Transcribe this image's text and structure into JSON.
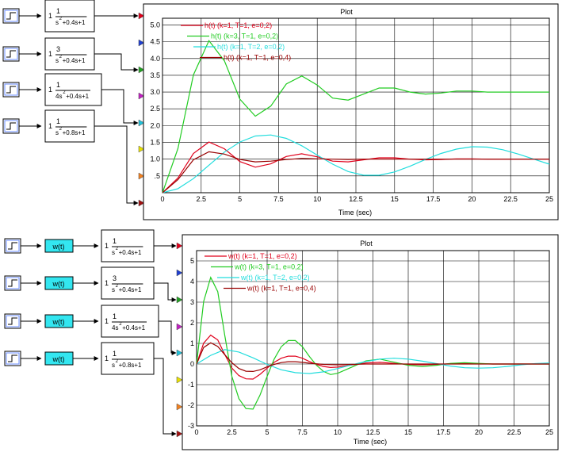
{
  "top_diagram": {
    "blocks": [
      {
        "gain": "1",
        "num": "1",
        "den_a": "s",
        "den_b": "+0.4s+1"
      },
      {
        "gain": "1",
        "num": "3",
        "den_a": "s",
        "den_b": "+0.4s+1"
      },
      {
        "gain": "1",
        "num": "1",
        "den_a": "4s",
        "den_b": "+0.4s+1"
      },
      {
        "gain": "1",
        "num": "1",
        "den_a": "s",
        "den_b": "+0.8s+1"
      }
    ]
  },
  "bottom_diagram": {
    "weight_label": "w(t)",
    "blocks": [
      {
        "gain": "1",
        "num": "1",
        "den_a": "s",
        "den_b": "+0.4s+1"
      },
      {
        "gain": "1",
        "num": "3",
        "den_a": "s",
        "den_b": "+0.4s+1"
      },
      {
        "gain": "1",
        "num": "1",
        "den_a": "4s",
        "den_b": "+0.4s+1"
      },
      {
        "gain": "1",
        "num": "1",
        "den_a": "s",
        "den_b": "+0.8s+1"
      }
    ]
  },
  "port_colors": [
    "#e0001b",
    "#1f3fd0",
    "#22a022",
    "#c020c0",
    "#20c0d8",
    "#e8e000",
    "#f08020",
    "#a01010"
  ],
  "chart_data": [
    {
      "type": "line",
      "title": "Plot",
      "xlabel": "Time (sec)",
      "ylabel": "",
      "xlim": [
        0,
        25
      ],
      "ylim": [
        0,
        5.2
      ],
      "grid": true,
      "xticks": [
        "0",
        "2.5",
        "5",
        "7.5",
        "10",
        "12.5",
        "15",
        "17.5",
        "20",
        "22.5",
        "25"
      ],
      "yticks": [
        ".5",
        "1.0",
        "1.5",
        "2.0",
        "2.5",
        "3.0",
        "3.5",
        "4.0",
        "4.5",
        "5.0"
      ],
      "legend_position": "top-left",
      "series": [
        {
          "name": "h(t) (k=1, T=1, e=0,2)",
          "color": "#e0001b",
          "x": [
            0,
            1,
            2,
            3,
            4,
            5,
            6,
            7,
            8,
            9,
            10,
            11,
            12,
            13,
            14,
            15,
            16,
            17,
            18,
            19,
            20,
            21,
            22,
            23,
            24,
            25
          ],
          "y": [
            0,
            0.44,
            1.17,
            1.51,
            1.31,
            0.93,
            0.76,
            0.86,
            1.08,
            1.16,
            1.07,
            0.94,
            0.92,
            0.98,
            1.04,
            1.04,
            1.0,
            0.98,
            0.99,
            1.01,
            1.01,
            1.0,
            1.0,
            1.0,
            1.0,
            1.0
          ]
        },
        {
          "name": "h(t) (k=3, T=1, e=0,2)",
          "color": "#22cc22",
          "x": [
            0,
            1,
            2,
            3,
            4,
            5,
            6,
            7,
            8,
            9,
            10,
            11,
            12,
            13,
            14,
            15,
            16,
            17,
            18,
            19,
            20,
            21,
            22,
            23,
            24,
            25
          ],
          "y": [
            0,
            1.32,
            3.51,
            4.53,
            3.93,
            2.79,
            2.28,
            2.58,
            3.24,
            3.48,
            3.21,
            2.82,
            2.76,
            2.94,
            3.12,
            3.12,
            3.0,
            2.94,
            2.97,
            3.03,
            3.03,
            3.0,
            3.0,
            3.0,
            3.0,
            3.0
          ]
        },
        {
          "name": "h(t) (k=1, T=2, e=0,2)",
          "color": "#22dddd",
          "x": [
            0,
            1,
            2,
            3,
            4,
            5,
            6,
            7,
            8,
            9,
            10,
            11,
            12,
            13,
            14,
            15,
            16,
            17,
            18,
            19,
            20,
            21,
            22,
            23,
            24,
            25
          ],
          "y": [
            0,
            0.12,
            0.42,
            0.82,
            1.21,
            1.51,
            1.69,
            1.72,
            1.62,
            1.4,
            1.12,
            0.85,
            0.63,
            0.52,
            0.52,
            0.62,
            0.79,
            0.99,
            1.17,
            1.3,
            1.37,
            1.36,
            1.28,
            1.15,
            1.0,
            0.85
          ]
        },
        {
          "name": "h(t) (k=1, T=1, e=0,4)",
          "color": "#990000",
          "x": [
            0,
            1,
            2,
            3,
            4,
            5,
            6,
            7,
            8,
            9,
            10,
            11,
            12,
            13,
            14,
            15,
            16,
            17,
            18,
            19,
            20,
            21,
            22,
            23,
            24,
            25
          ],
          "y": [
            0,
            0.39,
            0.98,
            1.22,
            1.15,
            0.99,
            0.92,
            0.94,
            0.99,
            1.02,
            1.01,
            1.0,
            0.99,
            1.0,
            1.0,
            1.0,
            1.0,
            1.0,
            1.0,
            1.0,
            1.0,
            1.0,
            1.0,
            1.0,
            1.0,
            1.0
          ]
        }
      ]
    },
    {
      "type": "line",
      "title": "Plot",
      "xlabel": "Time (sec)",
      "ylabel": "",
      "xlim": [
        0,
        25
      ],
      "ylim": [
        -3,
        5.5
      ],
      "grid": true,
      "xticks": [
        "0",
        "2.5",
        "5",
        "7.5",
        "10",
        "12.5",
        "15",
        "17.5",
        "20",
        "22.5",
        "25"
      ],
      "yticks": [
        "-3",
        "-2",
        "-1",
        "0",
        "1",
        "2",
        "3",
        "4",
        "5"
      ],
      "legend_position": "top-left",
      "series": [
        {
          "name": "w(t) (k=1, T=1, e=0,2)",
          "color": "#e0001b",
          "x": [
            0,
            0.5,
            1,
            1.5,
            2,
            2.5,
            3,
            3.5,
            4,
            4.5,
            5,
            5.5,
            6,
            6.5,
            7,
            7.5,
            8,
            8.5,
            9,
            9.5,
            10,
            11,
            12,
            13,
            14,
            15,
            16,
            17,
            18,
            19,
            20,
            21,
            22,
            23,
            24,
            25
          ],
          "y": [
            0,
            1.01,
            1.4,
            1.17,
            0.46,
            -0.2,
            -0.56,
            -0.72,
            -0.73,
            -0.5,
            -0.2,
            0.08,
            0.28,
            0.38,
            0.38,
            0.28,
            0.12,
            -0.02,
            -0.12,
            -0.17,
            -0.15,
            -0.05,
            0.05,
            0.08,
            0.03,
            -0.02,
            -0.04,
            -0.02,
            0.01,
            0.02,
            0.01,
            0,
            0,
            0,
            0,
            0
          ]
        },
        {
          "name": "w(t) (k=3, T=1, e=0,2)",
          "color": "#22cc22",
          "x": [
            0,
            0.5,
            1,
            1.5,
            2,
            2.5,
            3,
            3.5,
            4,
            4.5,
            5,
            5.5,
            6,
            6.5,
            7,
            7.5,
            8,
            8.5,
            9,
            9.5,
            10,
            11,
            12,
            13,
            14,
            15,
            16,
            17,
            18,
            19,
            20,
            21,
            22,
            23,
            24,
            25
          ],
          "y": [
            0,
            3.03,
            4.2,
            3.51,
            1.38,
            -0.6,
            -1.68,
            -2.16,
            -2.19,
            -1.5,
            -0.6,
            0.24,
            0.84,
            1.14,
            1.14,
            0.84,
            0.36,
            -0.06,
            -0.36,
            -0.51,
            -0.45,
            -0.15,
            0.15,
            0.24,
            0.09,
            -0.06,
            -0.12,
            -0.06,
            0.03,
            0.06,
            0.03,
            0,
            0,
            0,
            0,
            0
          ]
        },
        {
          "name": "w(t) (k=1, T=2, e=0,2)",
          "color": "#22dddd",
          "x": [
            0,
            1,
            2,
            3,
            4,
            5,
            6,
            7,
            8,
            9,
            10,
            11,
            12,
            13,
            14,
            15,
            16,
            17,
            18,
            19,
            20,
            21,
            22,
            23,
            24,
            25
          ],
          "y": [
            0,
            0.42,
            0.7,
            0.58,
            0.3,
            -0.02,
            -0.28,
            -0.42,
            -0.46,
            -0.38,
            -0.22,
            -0.04,
            0.12,
            0.24,
            0.28,
            0.24,
            0.14,
            0.02,
            -0.1,
            -0.18,
            -0.2,
            -0.18,
            -0.12,
            -0.04,
            0.02,
            0.05
          ]
        },
        {
          "name": "w(t) (k=1, T=1, e=0,4)",
          "color": "#990000",
          "x": [
            0,
            0.5,
            1,
            1.5,
            2,
            2.5,
            3,
            3.5,
            4,
            4.5,
            5,
            5.5,
            6,
            6.5,
            7,
            7.5,
            8,
            9,
            10,
            11,
            12,
            14,
            16,
            18,
            20,
            22,
            25
          ],
          "y": [
            0,
            0.8,
            1.03,
            0.85,
            0.45,
            0.06,
            -0.22,
            -0.35,
            -0.36,
            -0.28,
            -0.14,
            -0.02,
            0.07,
            0.11,
            0.11,
            0.08,
            0.04,
            -0.02,
            -0.04,
            -0.02,
            0,
            0,
            0,
            0,
            0,
            0,
            0
          ]
        }
      ]
    }
  ]
}
